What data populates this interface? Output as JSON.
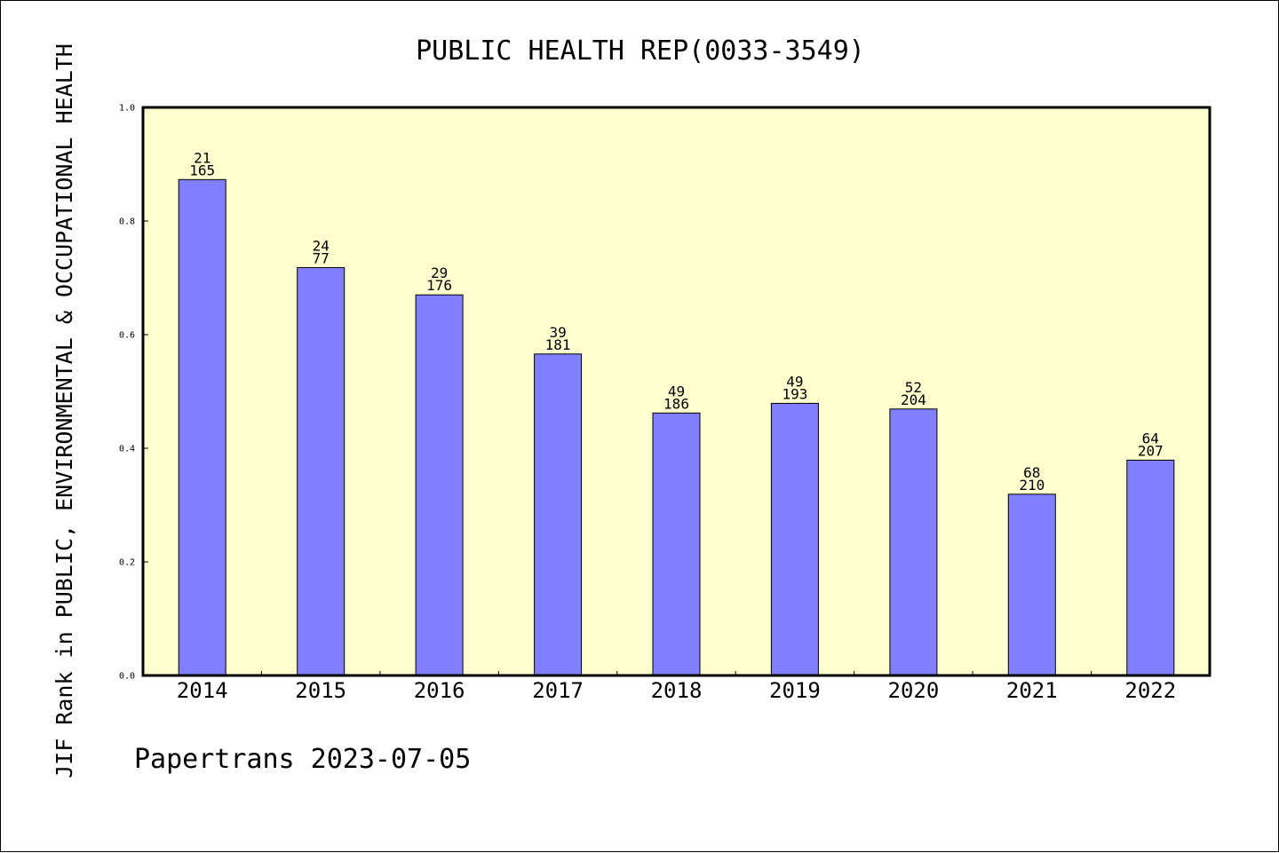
{
  "chart_data": {
    "type": "bar",
    "title": "PUBLIC HEALTH REP(0033-3549)",
    "xlabel": "",
    "ylabel": "JIF Rank in PUBLIC, ENVIRONMENTAL & OCCUPATIONAL HEALTH",
    "categories": [
      "2014",
      "2015",
      "2016",
      "2017",
      "2018",
      "2019",
      "2020",
      "2021",
      "2022"
    ],
    "values": [
      0.873,
      0.718,
      0.67,
      0.566,
      0.462,
      0.479,
      0.469,
      0.319,
      0.379
    ],
    "rank": [
      "21",
      "24",
      "29",
      "39",
      "49",
      "49",
      "52",
      "68",
      "64"
    ],
    "total": [
      "165",
      "77",
      "176",
      "181",
      "186",
      "193",
      "204",
      "210",
      "207"
    ],
    "ylim": [
      0,
      1.0
    ],
    "yticks": [
      "0.0",
      "0.2",
      "0.4",
      "0.6",
      "0.8",
      "1.0"
    ],
    "grid": false,
    "colors": {
      "bar": "#8080ff",
      "plot_background": "#ffffd0",
      "axis": "#000000"
    }
  },
  "footer": "Papertrans 2023-07-05"
}
